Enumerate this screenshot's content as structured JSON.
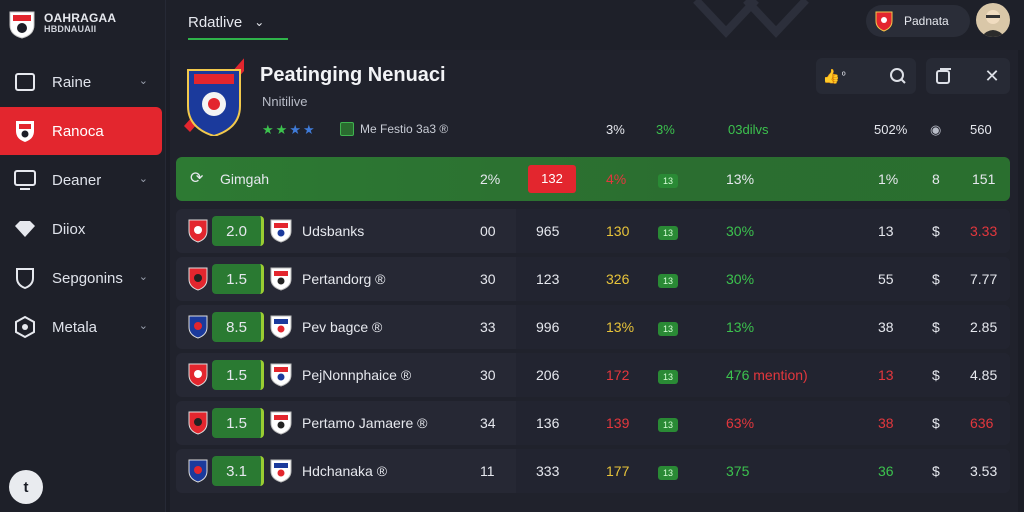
{
  "brand": {
    "line1": "OAHRAGAA",
    "line2": "HBDNAUAII"
  },
  "sidebar": {
    "items": [
      {
        "label": "Raine",
        "icon": "square-icon",
        "chevron": true,
        "active": false
      },
      {
        "label": "Ranoca",
        "icon": "club-crest-icon",
        "chevron": false,
        "active": true
      },
      {
        "label": "Deaner",
        "icon": "monitor-icon",
        "chevron": true,
        "active": false
      },
      {
        "label": "Diiox",
        "icon": "diamond-icon",
        "chevron": false,
        "active": false
      },
      {
        "label": "Sepgonins",
        "icon": "shield-icon",
        "chevron": true,
        "active": false
      },
      {
        "label": "Metala",
        "icon": "target-icon",
        "chevron": true,
        "active": false
      }
    ],
    "footer_badge": "t"
  },
  "topbar": {
    "select_label": "Rdatlive",
    "profile_label": "Padnata"
  },
  "team": {
    "title": "Peatinging Nenuaci",
    "subtitle": "Nnitilive",
    "meta": "Me Festio 3a3 ®",
    "stats": {
      "s1": "3%",
      "s2": "3%",
      "s3": "03dilvs",
      "s4": "502%",
      "s5": "560"
    }
  },
  "toolbar": {
    "like_count": "º"
  },
  "rows": [
    {
      "type": "highlight",
      "name": "Gimgah",
      "c1": "2%",
      "c2": "132",
      "c3": "4%",
      "c4": "13",
      "c5": "13%",
      "c6": "1%",
      "c7": "8",
      "c8": "151"
    },
    {
      "score": "2.0",
      "name": "Udsbanks",
      "c1": "00",
      "c2": "965",
      "c3": "130",
      "c4": "13",
      "c5": "30%",
      "c6": "13",
      "c7": "$",
      "c8": "3.33",
      "c3cls": "yellow",
      "c5cls": "green",
      "c6cls": "white",
      "c8cls": "red"
    },
    {
      "score": "1.5",
      "name": "Pertandorg ®",
      "c1": "30",
      "c2": "123",
      "c3": "326",
      "c4": "13",
      "c5": "30%",
      "c6": "55",
      "c7": "$",
      "c8": "7.77",
      "c3cls": "yellow",
      "c5cls": "green",
      "c6cls": "white",
      "c8cls": "white"
    },
    {
      "score": "8.5",
      "name": "Pev bagce ®",
      "c1": "33",
      "c2": "996",
      "c3": "13%",
      "c4": "13",
      "c5": "13%",
      "c6": "38",
      "c7": "$",
      "c8": "2.85",
      "c3cls": "yellow",
      "c5cls": "green",
      "c6cls": "white",
      "c8cls": "white"
    },
    {
      "score": "1.5",
      "name": "PejNonnphaice ®",
      "c1": "30",
      "c2": "206",
      "c3": "172",
      "c4": "13",
      "c5": "476 mention)",
      "c6": "13",
      "c7": "$",
      "c8": "4.85",
      "c3cls": "red",
      "c5cls": "mixed",
      "c6cls": "red",
      "c8cls": "white"
    },
    {
      "score": "1.5",
      "name": "Pertamo Jamaere ®",
      "c1": "34",
      "c2": "136",
      "c3": "139",
      "c4": "13",
      "c5": "63%",
      "c6": "38",
      "c7": "$",
      "c8": "636",
      "c3cls": "red",
      "c5cls": "red",
      "c6cls": "red",
      "c8cls": "red"
    },
    {
      "score": "3.1",
      "name": "Hdchanaka ®",
      "c1": "11",
      "c2": "333",
      "c3": "177",
      "c4": "13",
      "c5": "375",
      "c6": "36",
      "c7": "$",
      "c8": "3.53",
      "c3cls": "yellow",
      "c5cls": "green",
      "c6cls": "green",
      "c8cls": "white"
    }
  ],
  "colors": {
    "accent_red": "#e3262e",
    "accent_green": "#2fb34a",
    "bg": "#1b1d26"
  }
}
